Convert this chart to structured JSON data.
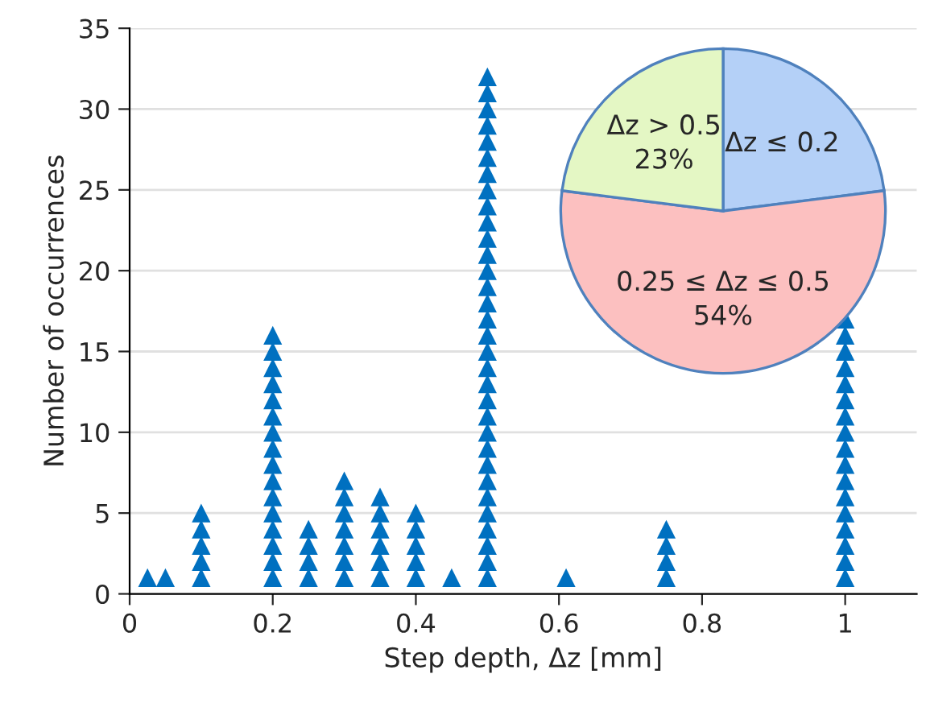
{
  "chart_data": [
    {
      "type": "scatter",
      "xlabel": "Step depth, Δz [mm]",
      "ylabel": "Number of occurrences",
      "x": [
        0.025,
        0.05,
        0.1,
        0.1,
        0.1,
        0.1,
        0.1,
        0.2,
        0.2,
        0.2,
        0.2,
        0.2,
        0.2,
        0.2,
        0.2,
        0.2,
        0.2,
        0.2,
        0.2,
        0.2,
        0.2,
        0.2,
        0.2,
        0.25,
        0.25,
        0.25,
        0.25,
        0.3,
        0.3,
        0.3,
        0.3,
        0.3,
        0.3,
        0.3,
        0.35,
        0.35,
        0.35,
        0.35,
        0.35,
        0.35,
        0.4,
        0.4,
        0.4,
        0.4,
        0.4,
        0.45,
        0.5,
        0.5,
        0.5,
        0.5,
        0.5,
        0.5,
        0.5,
        0.5,
        0.5,
        0.5,
        0.5,
        0.5,
        0.5,
        0.5,
        0.5,
        0.5,
        0.5,
        0.5,
        0.5,
        0.5,
        0.5,
        0.5,
        0.5,
        0.5,
        0.5,
        0.5,
        0.5,
        0.5,
        0.5,
        0.5,
        0.5,
        0.5,
        0.61,
        0.75,
        0.75,
        0.75,
        0.75,
        1.0,
        1.0,
        1.0,
        1.0,
        1.0,
        1.0,
        1.0,
        1.0,
        1.0,
        1.0,
        1.0,
        1.0,
        1.0,
        1.0,
        1.0,
        1.0,
        1.0
      ],
      "series": [
        {
          "color": "#0070c0",
          "values": [
            1,
            1,
            1,
            2,
            3,
            4,
            5,
            1,
            2,
            3,
            4,
            5,
            6,
            7,
            8,
            9,
            10,
            11,
            12,
            13,
            14,
            15,
            16,
            1,
            2,
            3,
            4,
            1,
            2,
            3,
            4,
            5,
            6,
            7,
            1,
            2,
            3,
            4,
            5,
            6,
            1,
            2,
            3,
            4,
            5,
            1,
            1,
            2,
            3,
            4,
            5,
            6,
            7,
            8,
            9,
            10,
            11,
            12,
            13,
            14,
            15,
            16,
            17,
            18,
            19,
            20,
            21,
            22,
            23,
            24,
            25,
            26,
            27,
            28,
            29,
            30,
            31,
            32,
            1,
            1,
            2,
            3,
            4,
            1,
            2,
            3,
            4,
            5,
            6,
            7,
            8,
            9,
            10,
            11,
            12,
            13,
            14,
            15,
            16,
            17
          ]
        }
      ],
      "marker": "triangle",
      "xlim": [
        0,
        1.1
      ],
      "xticks": [
        0,
        0.2,
        0.4,
        0.6,
        0.8,
        1
      ],
      "ylim": [
        0,
        35
      ],
      "yticks": [
        0,
        5,
        10,
        15,
        20,
        25,
        30,
        35
      ],
      "grid": "y",
      "legend": false
    },
    {
      "type": "pie",
      "categories": [
        "Δz ≤ 0.2",
        "0.25 ≤ Δz ≤ 0.5",
        "Δz > 0.5"
      ],
      "values": [
        23,
        54,
        23
      ],
      "value_labels": [
        null,
        "54%",
        "23%"
      ],
      "colors": [
        "#b4d0f7",
        "#fcc0c0",
        "#e4f7c4"
      ]
    }
  ]
}
